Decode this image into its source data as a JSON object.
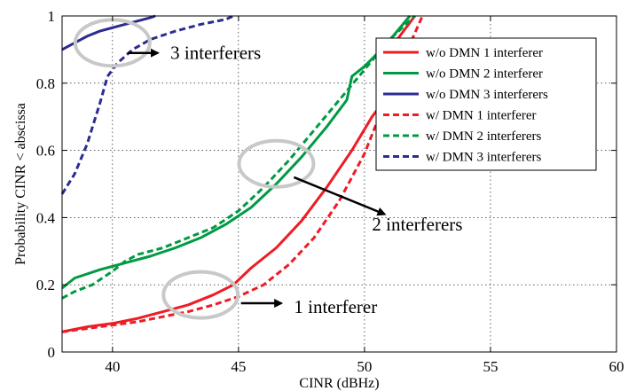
{
  "chart_data": {
    "type": "line",
    "title": "",
    "xlabel": "CINR (dBHz)",
    "ylabel": "Probability CINR < abscissa",
    "xlim": [
      38,
      60
    ],
    "ylim": [
      0,
      1
    ],
    "xticks": [
      40,
      45,
      50,
      55,
      60
    ],
    "yticks": [
      0,
      0.2,
      0.4,
      0.6,
      0.8,
      1
    ],
    "ytick_labels": [
      "0",
      "0.2",
      "0.4",
      "0.6",
      "0.8",
      "1"
    ],
    "grid": true,
    "legend_position": "top-right",
    "series": [
      {
        "name": "w/o DMN 1 interferer",
        "color": "#ee1c24",
        "dash": "solid",
        "x": [
          38,
          39,
          40,
          41,
          42,
          43,
          44,
          44.8,
          45.5,
          46.5,
          47.5,
          48.5,
          49.5,
          50.3,
          50.5,
          50.7,
          51.3,
          52
        ],
        "y": [
          0.06,
          0.075,
          0.085,
          0.1,
          0.12,
          0.14,
          0.17,
          0.2,
          0.25,
          0.31,
          0.39,
          0.49,
          0.6,
          0.7,
          0.72,
          0.85,
          0.93,
          1.0
        ]
      },
      {
        "name": "w/o DMN 2 interferer",
        "color": "#009a44",
        "dash": "solid",
        "x": [
          38,
          38.5,
          39.5,
          40.5,
          41.5,
          42.5,
          43.5,
          44.5,
          45.5,
          46.5,
          47.5,
          48.5,
          49.3,
          49.5,
          50,
          50.8,
          51.8
        ],
        "y": [
          0.19,
          0.22,
          0.245,
          0.265,
          0.285,
          0.31,
          0.34,
          0.38,
          0.43,
          0.5,
          0.58,
          0.67,
          0.75,
          0.82,
          0.85,
          0.91,
          1.0
        ]
      },
      {
        "name": "w/o DMN 3 interferers",
        "color": "#2b2c8f",
        "dash": "solid",
        "x": [
          38,
          38.5,
          39,
          39.5,
          40,
          40.5,
          41,
          41.5,
          41.7
        ],
        "y": [
          0.9,
          0.92,
          0.94,
          0.955,
          0.965,
          0.975,
          0.985,
          0.995,
          1.0
        ]
      },
      {
        "name": "w/ DMN 1 interferer",
        "color": "#ee1c24",
        "dash": "dashed",
        "x": [
          38,
          39,
          40,
          41,
          42,
          43,
          44,
          45,
          46,
          47,
          48,
          49,
          50,
          51,
          52.3
        ],
        "y": [
          0.06,
          0.07,
          0.08,
          0.09,
          0.105,
          0.12,
          0.14,
          0.165,
          0.2,
          0.26,
          0.34,
          0.45,
          0.59,
          0.78,
          1.0
        ]
      },
      {
        "name": "w/ DMN 2 interferers",
        "color": "#009a44",
        "dash": "dashed",
        "x": [
          38,
          38.5,
          39.2,
          40,
          40.5,
          41,
          42,
          43,
          44,
          45,
          46,
          47,
          48,
          49,
          50,
          51,
          52
        ],
        "y": [
          0.16,
          0.18,
          0.2,
          0.24,
          0.27,
          0.29,
          0.31,
          0.34,
          0.37,
          0.42,
          0.49,
          0.57,
          0.66,
          0.75,
          0.84,
          0.93,
          1.0
        ]
      },
      {
        "name": "w/ DMN 3 interferers",
        "color": "#2b2c8f",
        "dash": "dashed",
        "x": [
          38,
          38.5,
          39,
          39.5,
          39.8,
          40.2,
          40.8,
          41.5,
          42.5,
          43.5,
          44.5,
          44.8
        ],
        "y": [
          0.47,
          0.53,
          0.62,
          0.74,
          0.82,
          0.86,
          0.9,
          0.93,
          0.955,
          0.975,
          0.99,
          1.0
        ]
      }
    ],
    "annotations": [
      {
        "label": "3 interferers",
        "ellipse": {
          "cx": 40,
          "cy": 0.92
        },
        "arrow_to": [
          41.8,
          0.89
        ],
        "text_at": [
          42.3,
          0.89
        ]
      },
      {
        "label": "2 interferers",
        "ellipse": {
          "cx": 46.5,
          "cy": 0.56
        },
        "arrow_from": [
          47.2,
          0.52
        ],
        "arrow_to": [
          50.8,
          0.41
        ],
        "text_at": [
          50.3,
          0.38
        ]
      },
      {
        "label": "1 interferer",
        "ellipse": {
          "cx": 43.5,
          "cy": 0.17
        },
        "arrow_from": [
          45.1,
          0.145
        ],
        "arrow_to": [
          46.7,
          0.145
        ],
        "text_at": [
          47.2,
          0.135
        ]
      }
    ]
  }
}
